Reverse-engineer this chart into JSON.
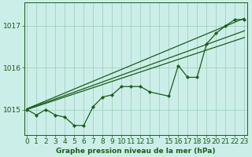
{
  "title": "Graphe pression niveau de la mer (hPa)",
  "background_color": "#cceee8",
  "grid_color": "#99ccbb",
  "line_color": "#1a5c1a",
  "text_color": "#1a5c1a",
  "x_values": [
    0,
    1,
    2,
    3,
    4,
    5,
    6,
    7,
    8,
    9,
    10,
    11,
    12,
    13,
    15,
    16,
    17,
    18,
    19,
    20,
    21,
    22,
    23
  ],
  "y_values": [
    1015.0,
    1014.87,
    1015.0,
    1014.87,
    1014.82,
    1014.62,
    1014.62,
    1015.07,
    1015.3,
    1015.35,
    1015.55,
    1015.55,
    1015.55,
    1015.42,
    1015.32,
    1016.05,
    1015.77,
    1015.77,
    1016.57,
    1016.82,
    1017.0,
    1017.15,
    1017.15
  ],
  "ylim_min": 1014.4,
  "ylim_max": 1017.55,
  "yticks": [
    1015,
    1016,
    1017
  ],
  "xtick_labels": [
    "0",
    "1",
    "2",
    "3",
    "4",
    "5",
    "6",
    "7",
    "8",
    "9",
    "10",
    "11",
    "12",
    "13",
    "",
    "15",
    "16",
    "17",
    "18",
    "19",
    "20",
    "21",
    "22",
    "23"
  ],
  "xtick_positions": [
    0,
    1,
    2,
    3,
    4,
    5,
    6,
    7,
    8,
    9,
    10,
    11,
    12,
    13,
    14,
    15,
    16,
    17,
    18,
    19,
    20,
    21,
    22,
    23
  ],
  "trend_x": [
    0,
    23
  ],
  "trend1_y": [
    1015.02,
    1017.18
  ],
  "trend2_y": [
    1015.01,
    1016.88
  ],
  "trend3_y": [
    1015.0,
    1016.72
  ],
  "marker_size": 2.2,
  "linewidth": 0.9,
  "xlabel_fontsize": 6.5,
  "ylabel_fontsize": 6.5,
  "title_fontsize": 6.5
}
